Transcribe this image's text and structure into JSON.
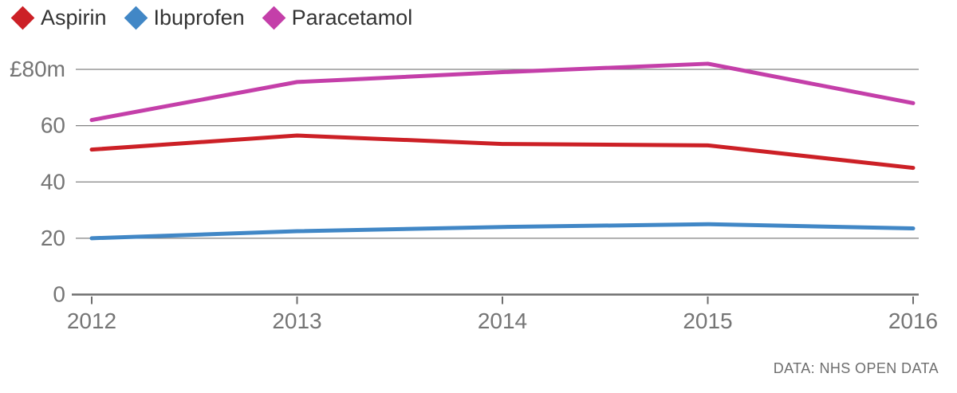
{
  "source_caption": "DATA: NHS OPEN DATA",
  "chart_data": {
    "type": "line",
    "title": "",
    "x": [
      "2012",
      "2013",
      "2014",
      "2015",
      "2016"
    ],
    "series": [
      {
        "name": "Aspirin",
        "color": "#cc2026",
        "values": [
          51.5,
          56.5,
          53.5,
          53,
          45
        ]
      },
      {
        "name": "Ibuprofen",
        "color": "#4187c6",
        "values": [
          20,
          22.5,
          24,
          25,
          23.5
        ]
      },
      {
        "name": "Paracetamol",
        "color": "#c43fa9",
        "values": [
          62,
          75.5,
          79,
          82,
          68
        ]
      }
    ],
    "y_axis": {
      "unit": "£m",
      "ylim": [
        0,
        86
      ],
      "ticks": [
        {
          "value": 0,
          "label": "0"
        },
        {
          "value": 20,
          "label": "20"
        },
        {
          "value": 40,
          "label": "40"
        },
        {
          "value": 60,
          "label": "60"
        },
        {
          "value": 80,
          "label": "£80m"
        }
      ]
    },
    "grid": "horizontal",
    "legend_position": "top-left",
    "marker": "diamond",
    "colors": {
      "gridline": "#828282",
      "axis_line": "#6e6e6e",
      "axis_text": "#757575",
      "legend_text": "#333333"
    }
  }
}
